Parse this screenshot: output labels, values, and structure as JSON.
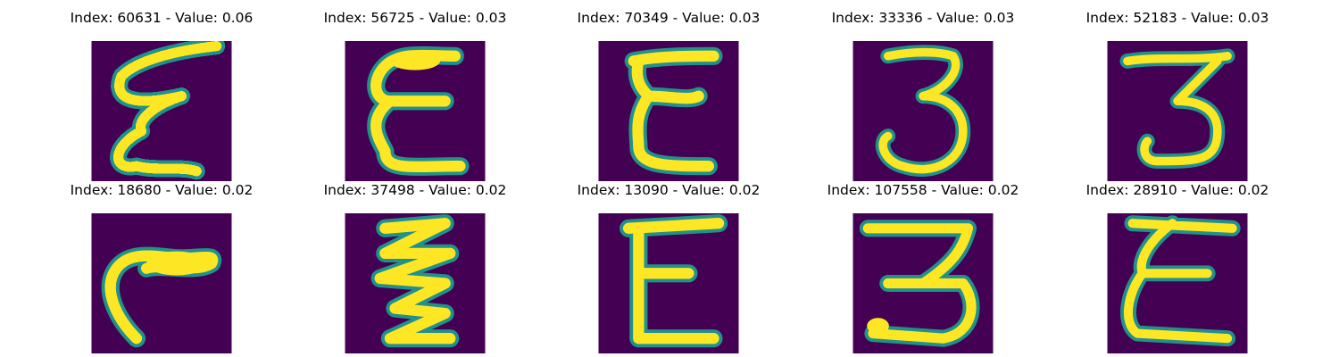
{
  "panels": [
    {
      "title": "Index: 60631 - Value: 0.06",
      "digit_glyph": "handwritten-3-mirrored-e"
    },
    {
      "title": "Index: 56725 - Value: 0.03",
      "digit_glyph": "handwritten-e"
    },
    {
      "title": "Index: 70349 - Value: 0.03",
      "digit_glyph": "handwritten-e"
    },
    {
      "title": "Index: 33336 - Value: 0.03",
      "digit_glyph": "handwritten-3"
    },
    {
      "title": "Index: 52183 - Value: 0.03",
      "digit_glyph": "handwritten-3"
    },
    {
      "title": "Index: 18680 - Value: 0.02",
      "digit_glyph": "handwritten-hook"
    },
    {
      "title": "Index: 37498 - Value: 0.02",
      "digit_glyph": "handwritten-zigzag-e"
    },
    {
      "title": "Index: 13090 - Value: 0.02",
      "digit_glyph": "handwritten-e"
    },
    {
      "title": "Index: 107558 - Value: 0.02",
      "digit_glyph": "handwritten-3"
    },
    {
      "title": "Index: 28910 - Value: 0.02",
      "digit_glyph": "handwritten-e"
    }
  ],
  "colors": {
    "background": "#440154",
    "stroke_outer": "#21918c",
    "stroke_inner": "#fde725"
  }
}
